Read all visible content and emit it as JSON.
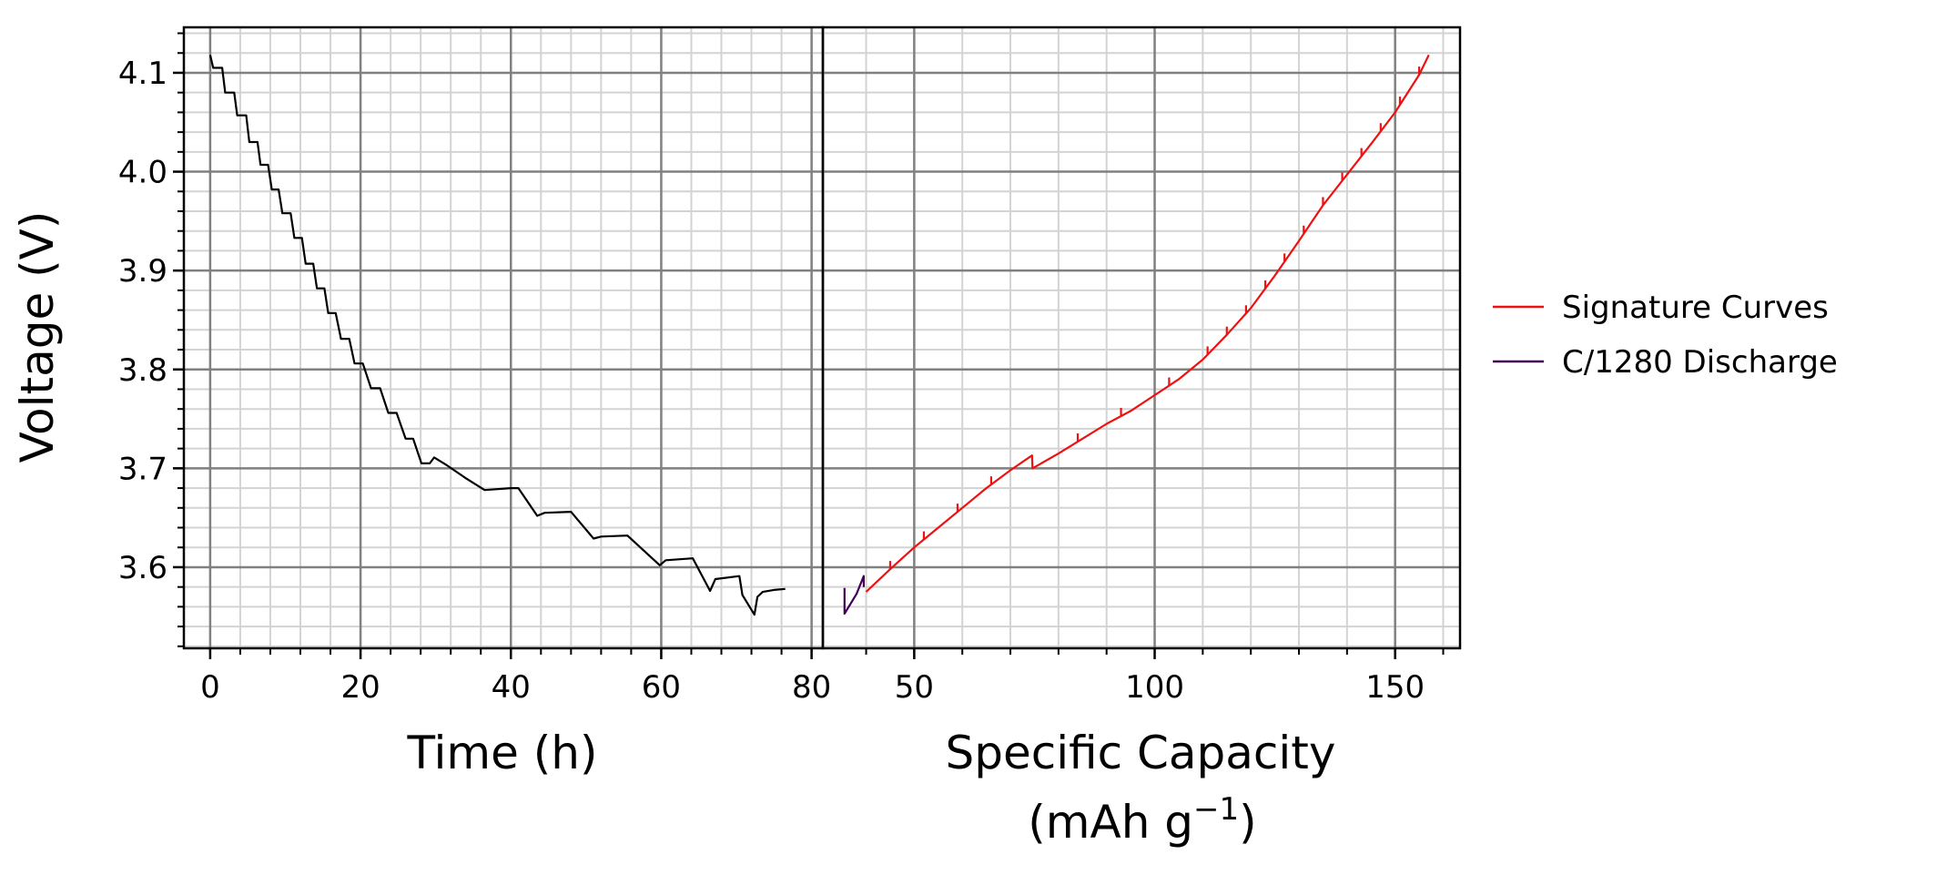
{
  "chart_data": [
    {
      "type": "line",
      "panel": "left",
      "xlabel": "Time (h)",
      "ylabel": "Voltage (V)",
      "xlim": [
        -3.5,
        81.5
      ],
      "ylim": [
        3.518,
        4.146
      ],
      "xticks": [
        0,
        20,
        40,
        60,
        80
      ],
      "yticks": [
        3.6,
        3.7,
        3.8,
        3.9,
        4.0,
        4.1
      ],
      "grid": "major and minor",
      "series": [
        {
          "color": "#000000",
          "points": [
            [
              0.0,
              4.118
            ],
            [
              0.4,
              4.105
            ],
            [
              1.6,
              4.105
            ],
            [
              2.0,
              4.08
            ],
            [
              3.2,
              4.08
            ],
            [
              3.6,
              4.057
            ],
            [
              4.8,
              4.057
            ],
            [
              5.2,
              4.03
            ],
            [
              6.3,
              4.03
            ],
            [
              6.7,
              4.007
            ],
            [
              7.7,
              4.007
            ],
            [
              8.2,
              3.982
            ],
            [
              9.1,
              3.982
            ],
            [
              9.6,
              3.958
            ],
            [
              10.7,
              3.958
            ],
            [
              11.2,
              3.933
            ],
            [
              12.2,
              3.933
            ],
            [
              12.7,
              3.907
            ],
            [
              13.7,
              3.907
            ],
            [
              14.2,
              3.882
            ],
            [
              15.2,
              3.882
            ],
            [
              15.7,
              3.857
            ],
            [
              16.7,
              3.857
            ],
            [
              17.4,
              3.831
            ],
            [
              18.5,
              3.831
            ],
            [
              19.2,
              3.806
            ],
            [
              20.3,
              3.806
            ],
            [
              21.4,
              3.781
            ],
            [
              22.6,
              3.781
            ],
            [
              23.7,
              3.756
            ],
            [
              24.8,
              3.756
            ],
            [
              26.0,
              3.73
            ],
            [
              27.0,
              3.73
            ],
            [
              28.1,
              3.705
            ],
            [
              29.2,
              3.705
            ],
            [
              29.8,
              3.711
            ],
            [
              31.5,
              3.703
            ],
            [
              34.0,
              3.69
            ],
            [
              36.5,
              3.678
            ],
            [
              40.0,
              3.68
            ],
            [
              41.0,
              3.68
            ],
            [
              43.5,
              3.652
            ],
            [
              44.5,
              3.655
            ],
            [
              48.0,
              3.656
            ],
            [
              51.0,
              3.629
            ],
            [
              52.0,
              3.631
            ],
            [
              55.5,
              3.632
            ],
            [
              59.8,
              3.602
            ],
            [
              60.6,
              3.607
            ],
            [
              64.2,
              3.609
            ],
            [
              66.5,
              3.576
            ],
            [
              67.2,
              3.588
            ],
            [
              70.4,
              3.591
            ],
            [
              70.8,
              3.572
            ],
            [
              72.4,
              3.552
            ],
            [
              72.8,
              3.57
            ],
            [
              73.5,
              3.575
            ],
            [
              75.0,
              3.577
            ],
            [
              76.5,
              3.578
            ]
          ]
        }
      ]
    },
    {
      "type": "line",
      "panel": "right",
      "xlabel": "Specific Capacity",
      "xlabel_unit_text": "(mAh g",
      "xlabel_unit_exp": "−1",
      "xlabel_unit_close": ")",
      "xlim": [
        31.0,
        163.5
      ],
      "ylim": [
        3.518,
        4.146
      ],
      "xticks": [
        50,
        100,
        150
      ],
      "grid": "major and minor",
      "legend_position": "outside-right",
      "series": [
        {
          "name": "Signature Curves",
          "color": "#ee1111",
          "points": [
            [
              40.0,
              3.575
            ],
            [
              45.0,
              3.598
            ],
            [
              50.0,
              3.62
            ],
            [
              55.0,
              3.64
            ],
            [
              60.0,
              3.66
            ],
            [
              65.0,
              3.68
            ],
            [
              70.0,
              3.698
            ],
            [
              74.5,
              3.713
            ],
            [
              74.6,
              3.7
            ],
            [
              80.0,
              3.715
            ],
            [
              85.0,
              3.73
            ],
            [
              90.0,
              3.745
            ],
            [
              95.0,
              3.758
            ],
            [
              100.0,
              3.774
            ],
            [
              105.0,
              3.79
            ],
            [
              110.0,
              3.81
            ],
            [
              115.0,
              3.835
            ],
            [
              120.0,
              3.862
            ],
            [
              125.0,
              3.895
            ],
            [
              130.0,
              3.93
            ],
            [
              135.0,
              3.966
            ],
            [
              140.0,
              3.997
            ],
            [
              145.0,
              4.028
            ],
            [
              150.0,
              4.06
            ],
            [
              155.0,
              4.098
            ],
            [
              157.0,
              4.118
            ]
          ],
          "ticks_at_x": [
            45,
            52,
            59,
            66,
            84,
            93,
            103,
            111,
            115,
            119,
            123,
            127,
            131,
            135,
            139,
            143,
            147,
            151,
            155
          ]
        },
        {
          "name": "C/1280 Discharge",
          "color": "#440154",
          "points": [
            [
              35.5,
              3.579
            ],
            [
              35.5,
              3.553
            ],
            [
              38.0,
              3.573
            ],
            [
              39.5,
              3.591
            ],
            [
              39.5,
              3.58
            ]
          ]
        }
      ]
    }
  ],
  "colors": {
    "major_grid": "#808080",
    "minor_grid": "#d3d3d3"
  }
}
